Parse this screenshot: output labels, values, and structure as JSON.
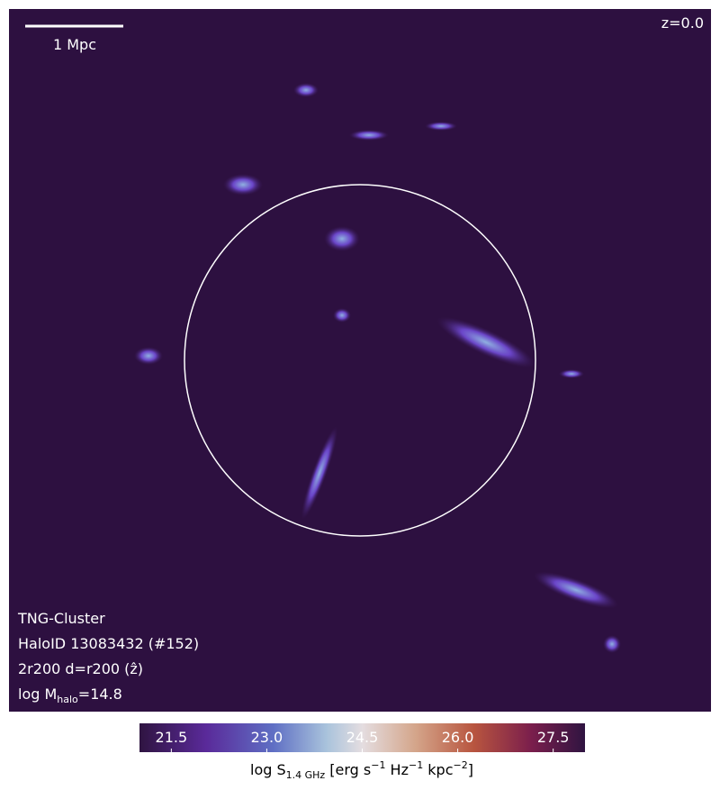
{
  "chart_data": {
    "type": "image",
    "scale_bar_label": "1 Mpc",
    "redshift_label": "z=0.0",
    "info_lines": [
      "TNG-Cluster",
      "HaloID 13083432 (#152)",
      "2r200 d=r200 (ẑ)"
    ],
    "mass_label": [
      "log M",
      "halo",
      "=14.8"
    ],
    "colorbar": {
      "lim": [
        21.0,
        28.0
      ],
      "ticks": [
        {
          "value": 21.5,
          "label": "21.5"
        },
        {
          "value": 23,
          "label": "23.0"
        },
        {
          "value": 24.5,
          "label": "24.5"
        },
        {
          "value": 26,
          "label": "26.0"
        },
        {
          "value": 27.5,
          "label": "27.5"
        }
      ],
      "label_parts": [
        "log S",
        "1.4 GHz",
        " [erg s",
        "−1",
        " Hz",
        "−1",
        " kpc",
        "−2",
        "]"
      ]
    }
  }
}
